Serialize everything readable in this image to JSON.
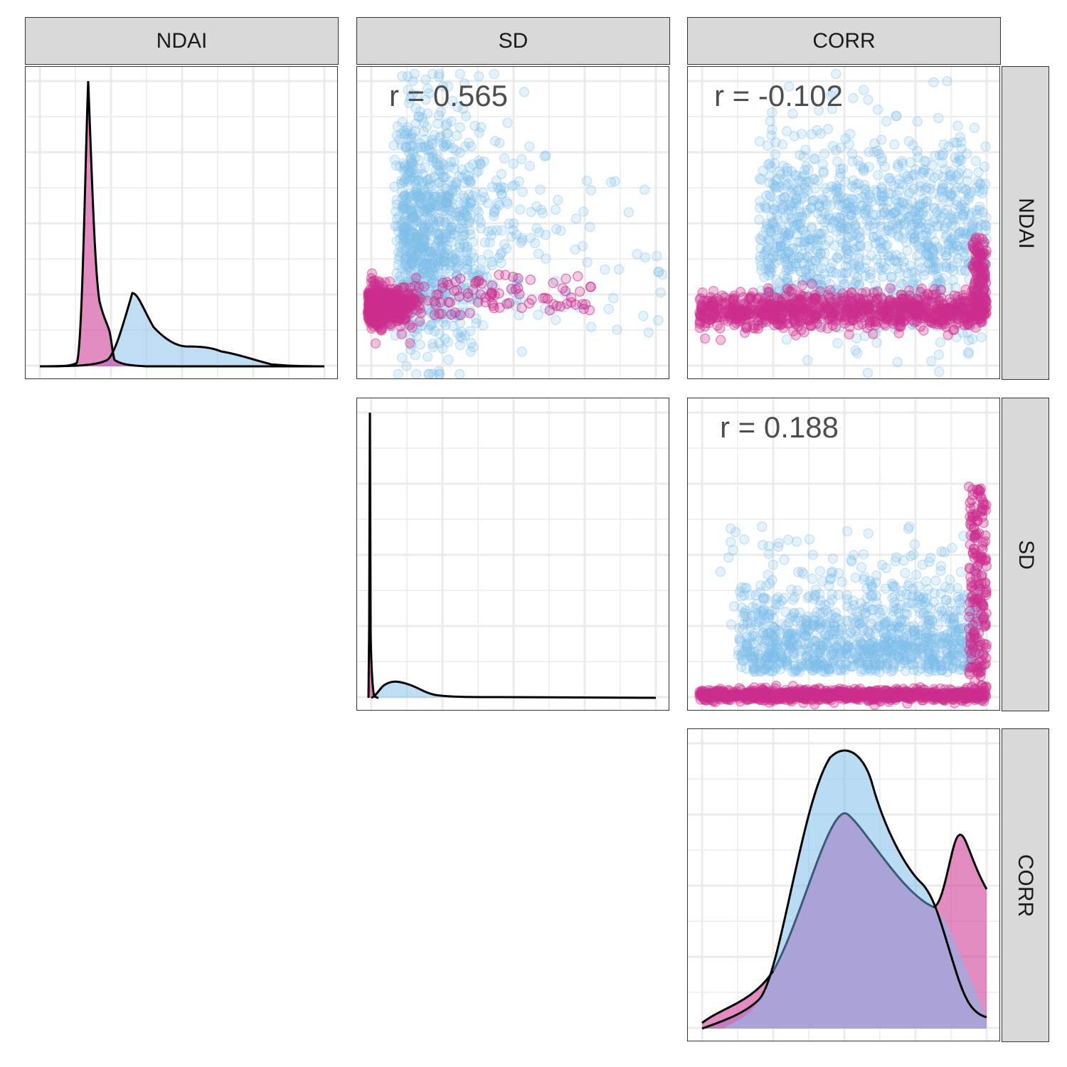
{
  "strips": {
    "col_ndai": "NDAI",
    "col_sd": "SD",
    "col_corr": "CORR",
    "row_ndai": "NDAI",
    "row_sd": "SD",
    "row_corr": "CORR"
  },
  "colors": {
    "class_a": "#cc2e8f",
    "class_b": "#7fbdea",
    "overlap": "#a9a6d9",
    "grid": "#ebebeb",
    "line": "#000000"
  },
  "chart_data": {
    "type": "scatter",
    "layout": "pairs-matrix",
    "variables": [
      "NDAI",
      "SD",
      "CORR"
    ],
    "classes": [
      {
        "color": "#cc2e8f"
      },
      {
        "color": "#7fbdea"
      }
    ],
    "correlations": [
      {
        "pair": [
          "NDAI",
          "SD"
        ],
        "label": "r = 0.565",
        "value": 0.565
      },
      {
        "pair": [
          "NDAI",
          "CORR"
        ],
        "label": "r = -0.102",
        "value": -0.102
      },
      {
        "pair": [
          "SD",
          "CORR"
        ],
        "label": "r = 0.188",
        "value": 0.188
      }
    ],
    "grid": true,
    "axis_ticks_labeled": false
  }
}
